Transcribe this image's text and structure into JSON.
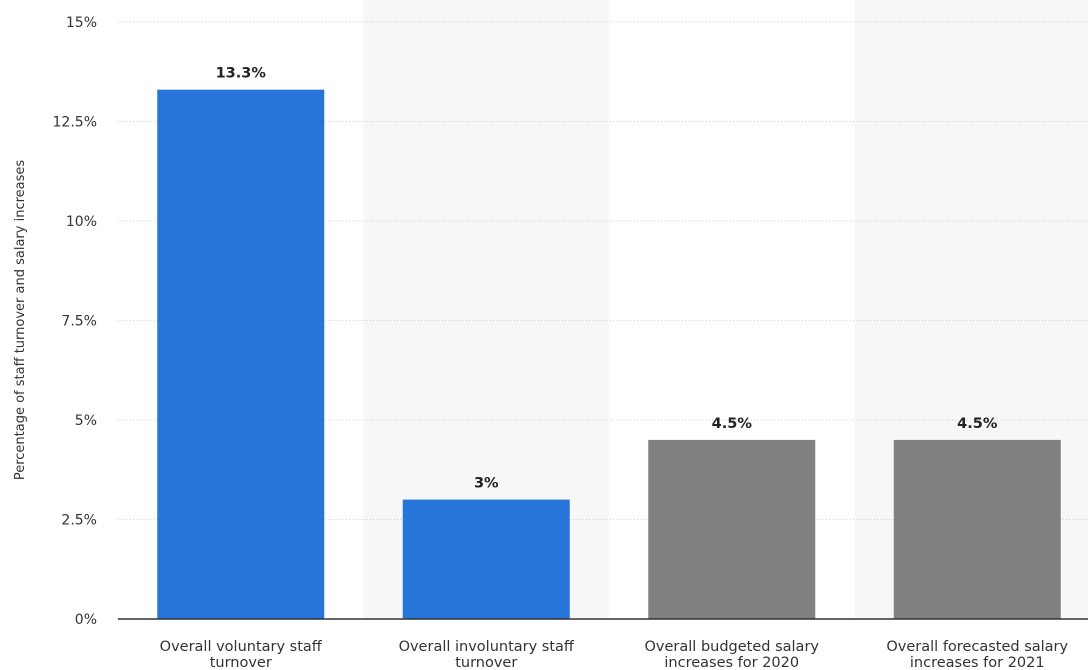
{
  "chart_data": {
    "type": "bar",
    "title": "",
    "xlabel": "",
    "ylabel": "Percentage of staff turnover and salary increases",
    "ylim": [
      0,
      15
    ],
    "yticks": [
      {
        "value": 0,
        "label": "0%"
      },
      {
        "value": 2.5,
        "label": "2.5%"
      },
      {
        "value": 5,
        "label": "5%"
      },
      {
        "value": 7.5,
        "label": "7.5%"
      },
      {
        "value": 10,
        "label": "10%"
      },
      {
        "value": 12.5,
        "label": "12.5%"
      },
      {
        "value": 15,
        "label": "15%"
      }
    ],
    "grid": true,
    "legend": "none",
    "categories": [
      [
        "Overall voluntary staff",
        "turnover"
      ],
      [
        "Overall involuntary staff",
        "turnover"
      ],
      [
        "Overall budgeted salary",
        "increases for 2020"
      ],
      [
        "Overall forecasted salary",
        "increases for 2021"
      ]
    ],
    "values": [
      13.3,
      3,
      4.5,
      4.5
    ],
    "value_labels": [
      "13.3%",
      "3%",
      "4.5%",
      "4.5%"
    ],
    "bar_colors": [
      "#2775d9",
      "#2775d9",
      "#808080",
      "#808080"
    ],
    "band_color": "#f7f7f7"
  }
}
